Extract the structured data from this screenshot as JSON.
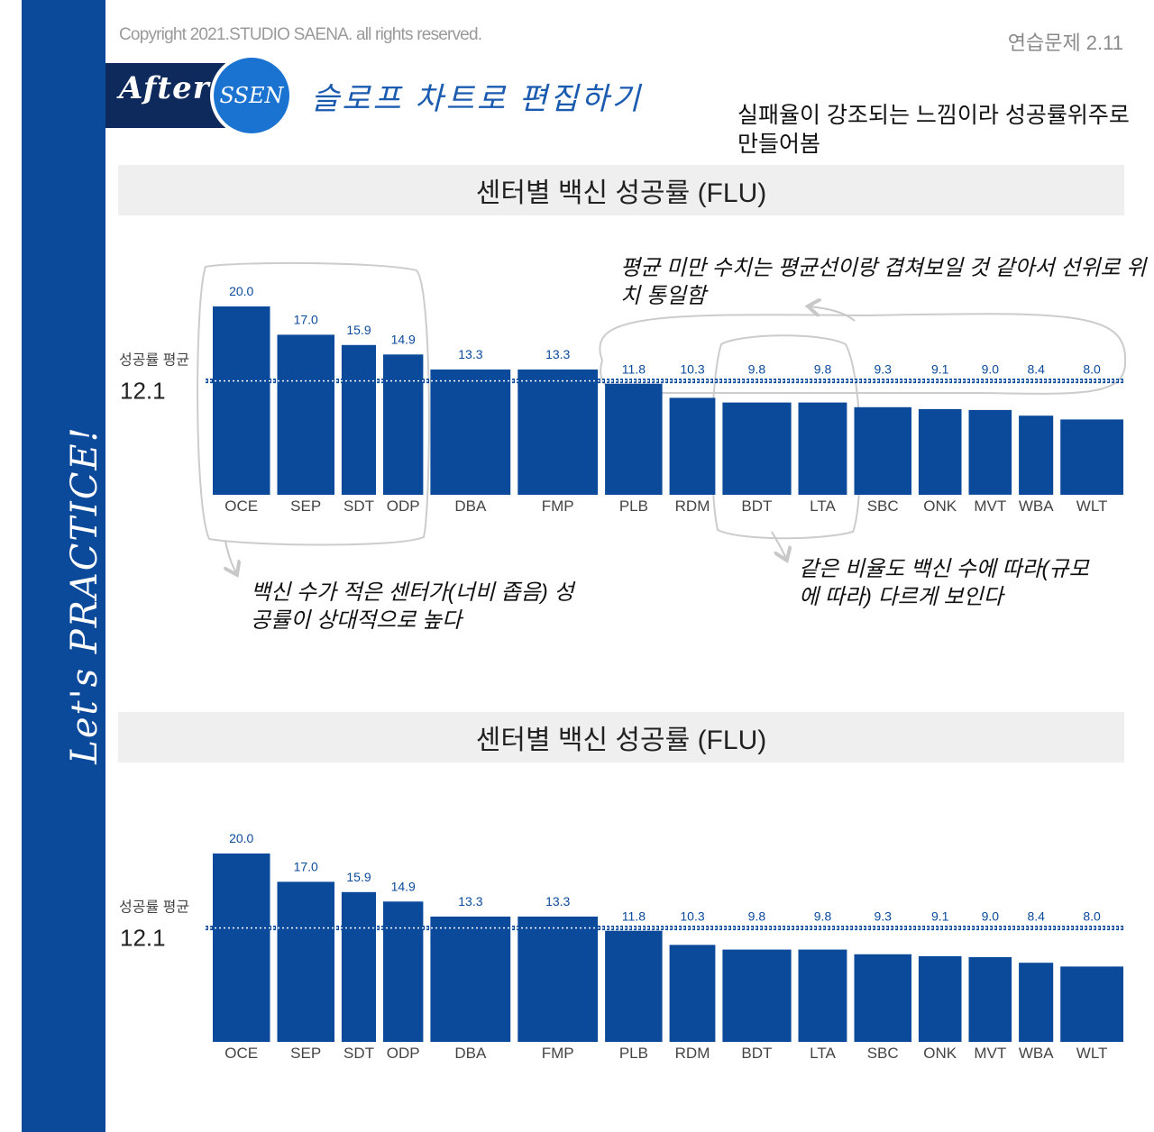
{
  "header": {
    "copyright": "Copyright 2021.STUDIO SAENA. all rights reserved.",
    "exercise_label": "연습문제 2.11",
    "after_label": "After",
    "ssen_label": "SSEN",
    "title": "슬로프 차트로 편집하기"
  },
  "sidebar": {
    "label": "Let's PRACTICE!"
  },
  "notes": {
    "top_note": "실패율이 강조되는 느낌이라 성공률위주로 만들어봄",
    "below_avg_note": "평균 미만 수치는 평균선이랑 겹쳐보일 것 같아서 선위로 위치 통일함",
    "narrow_note": "백신 수가 적은 센터가(너비 좁음) 성공률이 상대적으로 높다",
    "same_ratio_note": "같은 비율도 백신 수에 따라(규모에 따라) 다르게 보인다"
  },
  "colors": {
    "bar": "#0b4a9b",
    "label": "#0b4a9b",
    "avg_line": "#0b4a9b",
    "annotation": "#cccccc"
  },
  "chart_data": [
    {
      "type": "bar",
      "title": "센터별 백신 성공률 (FLU)",
      "categories": [
        "OCE",
        "SEP",
        "SDT",
        "ODP",
        "DBA",
        "FMP",
        "PLB",
        "RDM",
        "BDT",
        "LTA",
        "SBC",
        "ONK",
        "MVT",
        "WBA",
        "WLT"
      ],
      "values": [
        20.0,
        17.0,
        15.9,
        14.9,
        13.3,
        13.3,
        11.8,
        10.3,
        9.8,
        9.8,
        9.3,
        9.1,
        9.0,
        8.4,
        8.0
      ],
      "value_labels": [
        "20.0",
        "17.0",
        "15.9",
        "14.9",
        "13.3",
        "13.3",
        "11.8",
        "10.3",
        "9.8",
        "9.8",
        "9.3",
        "9.1",
        "9.0",
        "8.4",
        "8.0"
      ],
      "relative_widths": [
        1.0,
        1.0,
        0.6,
        0.7,
        1.4,
        1.4,
        1.0,
        0.8,
        1.2,
        0.85,
        1.0,
        0.75,
        0.75,
        0.6,
        1.1
      ],
      "average": {
        "label": "성공률 평균",
        "value": 12.1,
        "value_label": "12.1"
      },
      "ylim": [
        0,
        20
      ],
      "grid": false,
      "below_average_labels_on_line": true
    },
    {
      "type": "bar",
      "title": "센터별 백신 성공률 (FLU)",
      "categories": [
        "OCE",
        "SEP",
        "SDT",
        "ODP",
        "DBA",
        "FMP",
        "PLB",
        "RDM",
        "BDT",
        "LTA",
        "SBC",
        "ONK",
        "MVT",
        "WBA",
        "WLT"
      ],
      "values": [
        20.0,
        17.0,
        15.9,
        14.9,
        13.3,
        13.3,
        11.8,
        10.3,
        9.8,
        9.8,
        9.3,
        9.1,
        9.0,
        8.4,
        8.0
      ],
      "value_labels": [
        "20.0",
        "17.0",
        "15.9",
        "14.9",
        "13.3",
        "13.3",
        "11.8",
        "10.3",
        "9.8",
        "9.8",
        "9.3",
        "9.1",
        "9.0",
        "8.4",
        "8.0"
      ],
      "relative_widths": [
        1.0,
        1.0,
        0.6,
        0.7,
        1.4,
        1.4,
        1.0,
        0.8,
        1.2,
        0.85,
        1.0,
        0.75,
        0.75,
        0.6,
        1.1
      ],
      "average": {
        "label": "성공률 평균",
        "value": 12.1,
        "value_label": "12.1"
      },
      "ylim": [
        0,
        20
      ],
      "grid": false,
      "below_average_labels_on_line": true
    }
  ]
}
